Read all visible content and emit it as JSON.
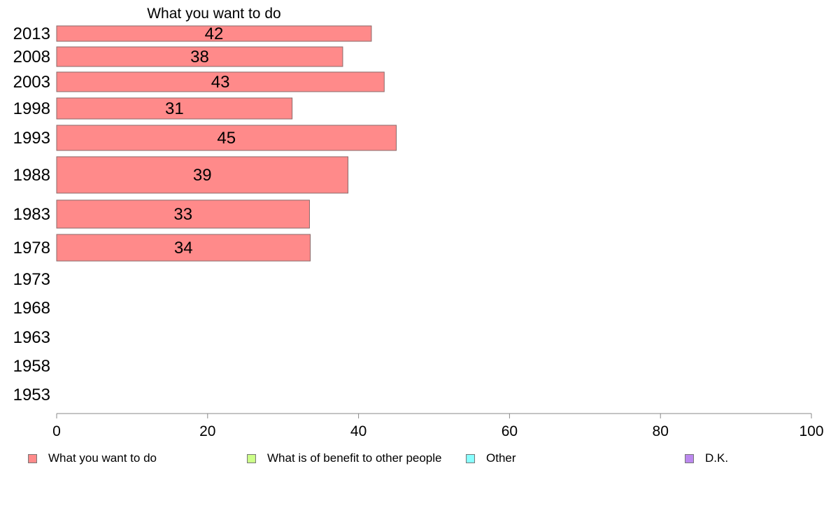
{
  "chart_data": {
    "type": "bar",
    "orientation": "horizontal",
    "title": "What you want to do",
    "categories": [
      "2013",
      "2008",
      "2003",
      "1998",
      "1993",
      "1988",
      "1983",
      "1978",
      "1973",
      "1968",
      "1963",
      "1958",
      "1953"
    ],
    "series": [
      {
        "name": "What you want to do",
        "color": "#ff8a8a",
        "values": [
          42,
          38,
          43,
          31,
          45,
          39,
          33,
          34,
          null,
          null,
          null,
          null,
          null
        ],
        "bar_values": [
          41.7,
          37.9,
          43.4,
          31.2,
          45.0,
          38.6,
          33.5,
          33.6,
          null,
          null,
          null,
          null,
          null
        ]
      }
    ],
    "xlim": [
      0,
      100
    ],
    "xticks": [
      "0",
      "20",
      "40",
      "60",
      "80",
      "100"
    ],
    "grid": false,
    "legend_position": "bottom"
  },
  "legend": {
    "items": [
      {
        "label": "What you want to do",
        "color": "#ff8a8a"
      },
      {
        "label": "What is of benefit to other people",
        "color": "#ccff88"
      },
      {
        "label": "Other",
        "color": "#88ffff"
      },
      {
        "label": "D.K.",
        "color": "#bb88ee"
      }
    ]
  }
}
